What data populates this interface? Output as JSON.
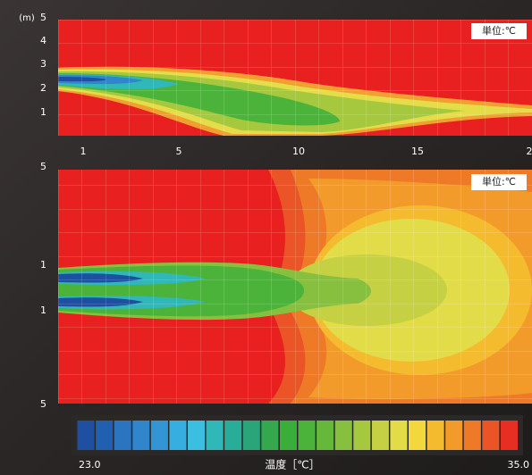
{
  "top_panel": {
    "y_axis_unit": "(m)",
    "yticks": [
      "5",
      "4",
      "3",
      "2",
      "1"
    ],
    "xticks": [
      "1",
      "5",
      "10",
      "15",
      "2"
    ],
    "unit_label": "単位:℃"
  },
  "bottom_panel": {
    "yticks": [
      "5",
      "1",
      "1",
      "5"
    ],
    "unit_label": "単位:℃"
  },
  "colorbar": {
    "min_label": "23.0",
    "title": "温度［℃］",
    "max_label": "35.0",
    "colors": [
      "#1f4fa0",
      "#2160b0",
      "#2a74c0",
      "#2f86cc",
      "#3296d6",
      "#37aee0",
      "#3bbfe0",
      "#30b7b8",
      "#2aad98",
      "#2aa57a",
      "#33a84c",
      "#3aae3a",
      "#4cb33a",
      "#66b83a",
      "#86c03e",
      "#a6c83e",
      "#c6d043",
      "#e2dc48",
      "#f2d83c",
      "#f4bb2e",
      "#f29a2a",
      "#ee7a28",
      "#ea5426",
      "#e62e22"
    ]
  }
}
